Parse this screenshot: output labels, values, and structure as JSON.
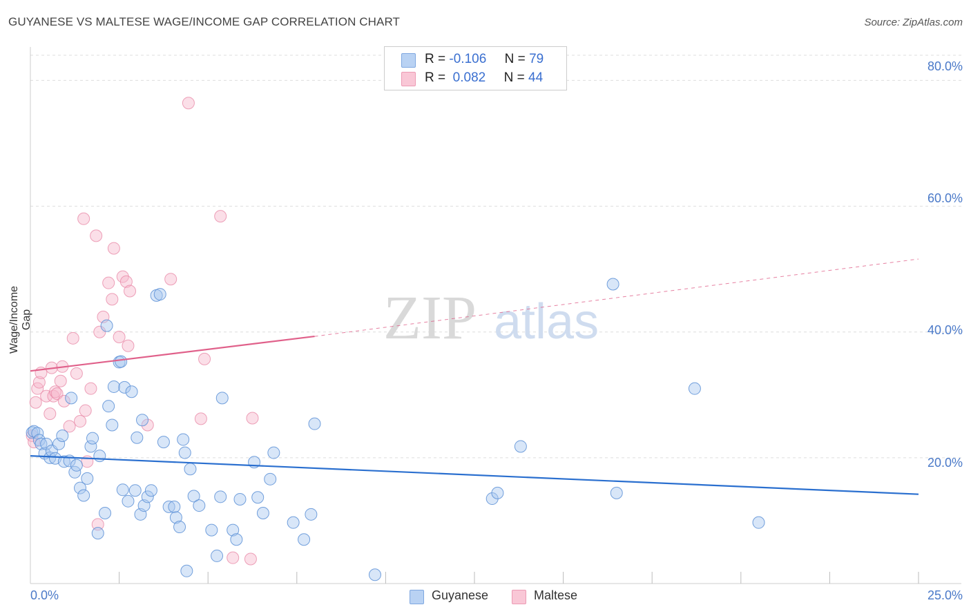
{
  "header": {
    "title": "GUYANESE VS MALTESE WAGE/INCOME GAP CORRELATION CHART",
    "source": "Source: ZipAtlas.com"
  },
  "legend": {
    "row1": {
      "r_label": "R =",
      "r_value": "-0.106",
      "n_label": "N =",
      "n_value": "79"
    },
    "row2": {
      "r_label": "R =",
      "r_value": "0.082",
      "n_label": "N =",
      "n_value": "44"
    }
  },
  "bottom_legend": {
    "series1": "Guyanese",
    "series2": "Maltese"
  },
  "watermark": {
    "zip": "ZIP",
    "atlas": "atlas"
  },
  "colors": {
    "guyanese_fill": "#a9c8f0",
    "guyanese_stroke": "#5b8fd6",
    "guyanese_line": "#2a6fcf",
    "maltese_fill": "#f7b8cc",
    "maltese_stroke": "#e88aa7",
    "maltese_line": "#e0608a",
    "tick_color": "#4a79c8"
  },
  "chart_data": {
    "type": "scatter",
    "title": "GUYANESE VS MALTESE WAGE/INCOME GAP CORRELATION CHART",
    "xlabel": "",
    "ylabel": "Wage/Income Gap",
    "xlim": [
      0,
      25
    ],
    "ylim": [
      0,
      84
    ],
    "x_tick_labels": [
      "0.0%",
      "25.0%"
    ],
    "y_ticks": [
      20,
      40,
      60,
      80
    ],
    "y_tick_labels": [
      "20.0%",
      "40.0%",
      "60.0%",
      "80.0%"
    ],
    "grid": true,
    "series": [
      {
        "name": "Guyanese",
        "r": -0.106,
        "n": 79,
        "trend": {
          "x0": 0,
          "y0": 20.3,
          "x1": 25,
          "y1": 14.2
        },
        "points": [
          [
            0.05,
            24
          ],
          [
            0.1,
            24.2
          ],
          [
            0.2,
            23.9
          ],
          [
            0.25,
            22.8
          ],
          [
            0.3,
            22.2
          ],
          [
            0.4,
            20.7
          ],
          [
            0.45,
            22.2
          ],
          [
            0.55,
            20
          ],
          [
            0.6,
            21.1
          ],
          [
            0.7,
            19.9
          ],
          [
            0.8,
            22.2
          ],
          [
            0.9,
            23.5
          ],
          [
            0.95,
            19.4
          ],
          [
            1.1,
            19.5
          ],
          [
            1.15,
            29.5
          ],
          [
            1.25,
            17.7
          ],
          [
            1.3,
            18.8
          ],
          [
            1.4,
            15.2
          ],
          [
            1.5,
            14
          ],
          [
            1.6,
            16.7
          ],
          [
            1.7,
            21.8
          ],
          [
            1.75,
            23.1
          ],
          [
            1.9,
            8
          ],
          [
            1.95,
            20.3
          ],
          [
            2.1,
            11.2
          ],
          [
            2.15,
            41
          ],
          [
            2.2,
            28.2
          ],
          [
            2.3,
            25.2
          ],
          [
            2.35,
            31.3
          ],
          [
            2.5,
            35.2
          ],
          [
            2.55,
            35.3
          ],
          [
            2.6,
            14.9
          ],
          [
            2.65,
            31.2
          ],
          [
            2.75,
            13.1
          ],
          [
            2.85,
            30.5
          ],
          [
            2.95,
            14.8
          ],
          [
            3.0,
            23.2
          ],
          [
            3.1,
            11
          ],
          [
            3.15,
            26
          ],
          [
            3.2,
            12.4
          ],
          [
            3.3,
            13.8
          ],
          [
            3.4,
            14.8
          ],
          [
            3.55,
            45.8
          ],
          [
            3.65,
            46
          ],
          [
            3.75,
            22.5
          ],
          [
            3.9,
            12.2
          ],
          [
            4.05,
            12.2
          ],
          [
            4.1,
            10.5
          ],
          [
            4.2,
            9
          ],
          [
            4.3,
            22.9
          ],
          [
            4.35,
            20.8
          ],
          [
            4.4,
            2
          ],
          [
            4.5,
            18.2
          ],
          [
            4.6,
            13.9
          ],
          [
            4.75,
            12.4
          ],
          [
            5.1,
            8.5
          ],
          [
            5.25,
            4.4
          ],
          [
            5.35,
            13.8
          ],
          [
            5.4,
            29.5
          ],
          [
            5.7,
            8.5
          ],
          [
            5.8,
            7
          ],
          [
            5.9,
            13.4
          ],
          [
            6.3,
            19.3
          ],
          [
            6.4,
            13.7
          ],
          [
            6.55,
            11.2
          ],
          [
            6.75,
            16.6
          ],
          [
            6.85,
            20.8
          ],
          [
            7.4,
            9.7
          ],
          [
            7.7,
            7
          ],
          [
            7.9,
            11
          ],
          [
            8.0,
            25.4
          ],
          [
            9.7,
            1.4
          ],
          [
            13.0,
            13.5
          ],
          [
            13.15,
            14.4
          ],
          [
            13.8,
            21.8
          ],
          [
            16.4,
            47.6
          ],
          [
            16.5,
            14.4
          ],
          [
            18.7,
            31
          ],
          [
            20.5,
            9.7
          ]
        ]
      },
      {
        "name": "Maltese",
        "r": 0.082,
        "n": 44,
        "trend": {
          "x0": 0,
          "y0": 33.8,
          "x1": 8.0,
          "y1": 39.3,
          "dashed_to_x": 25,
          "dashed_to_y": 51.6
        },
        "points": [
          [
            0.05,
            23.5
          ],
          [
            0.1,
            22.5
          ],
          [
            0.15,
            28.8
          ],
          [
            0.2,
            31
          ],
          [
            0.25,
            32
          ],
          [
            0.3,
            33.5
          ],
          [
            0.45,
            29.8
          ],
          [
            0.55,
            27
          ],
          [
            0.6,
            34.3
          ],
          [
            0.65,
            29.8
          ],
          [
            0.7,
            30.5
          ],
          [
            0.75,
            30.2
          ],
          [
            0.85,
            32.2
          ],
          [
            0.9,
            34.5
          ],
          [
            0.95,
            29
          ],
          [
            1.1,
            25
          ],
          [
            1.2,
            39
          ],
          [
            1.3,
            33.4
          ],
          [
            1.4,
            25.8
          ],
          [
            1.5,
            58
          ],
          [
            1.55,
            27.5
          ],
          [
            1.6,
            19.4
          ],
          [
            1.7,
            31
          ],
          [
            1.85,
            55.3
          ],
          [
            1.9,
            9.4
          ],
          [
            1.95,
            40
          ],
          [
            2.05,
            42.4
          ],
          [
            2.2,
            47.8
          ],
          [
            2.3,
            45.2
          ],
          [
            2.35,
            53.3
          ],
          [
            2.5,
            39.2
          ],
          [
            2.6,
            48.8
          ],
          [
            2.7,
            48
          ],
          [
            2.75,
            37.8
          ],
          [
            2.8,
            46.5
          ],
          [
            3.3,
            25.2
          ],
          [
            3.95,
            48.4
          ],
          [
            4.45,
            76.4
          ],
          [
            4.8,
            26.2
          ],
          [
            4.9,
            35.7
          ],
          [
            5.35,
            58.4
          ],
          [
            5.7,
            4.1
          ],
          [
            6.2,
            3.9
          ],
          [
            6.25,
            26.3
          ]
        ]
      }
    ]
  }
}
